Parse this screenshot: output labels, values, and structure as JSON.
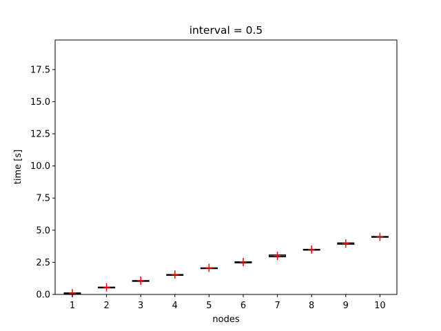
{
  "chart_data": {
    "type": "box",
    "title": "interval = 0.5",
    "xlabel": "nodes",
    "ylabel": "time [s]",
    "categories": [
      "1",
      "2",
      "3",
      "4",
      "5",
      "6",
      "7",
      "8",
      "9",
      "10"
    ],
    "ylim": [
      0,
      19.8
    ],
    "yticks": [
      0.0,
      2.5,
      5.0,
      7.5,
      10.0,
      12.5,
      15.0,
      17.5
    ],
    "ytick_labels": [
      "0.0",
      "2.5",
      "5.0",
      "7.5",
      "10.0",
      "12.5",
      "15.0",
      "17.5"
    ],
    "grid": false,
    "boxes": [
      {
        "category": "1",
        "q1": 0.08,
        "median": 0.1,
        "q3": 0.13
      },
      {
        "category": "2",
        "q1": 0.52,
        "median": 0.55,
        "q3": 0.58
      },
      {
        "category": "3",
        "q1": 1.03,
        "median": 1.06,
        "q3": 1.09
      },
      {
        "category": "4",
        "q1": 1.48,
        "median": 1.52,
        "q3": 1.56
      },
      {
        "category": "5",
        "q1": 2.02,
        "median": 2.05,
        "q3": 2.08
      },
      {
        "category": "6",
        "q1": 2.45,
        "median": 2.5,
        "q3": 2.55
      },
      {
        "category": "7",
        "q1": 2.92,
        "median": 3.0,
        "q3": 3.08
      },
      {
        "category": "8",
        "q1": 3.46,
        "median": 3.49,
        "q3": 3.52
      },
      {
        "category": "9",
        "q1": 3.9,
        "median": 3.97,
        "q3": 4.02
      },
      {
        "category": "10",
        "q1": 4.44,
        "median": 4.48,
        "q3": 4.52
      }
    ],
    "means": [
      0.1,
      0.55,
      1.08,
      1.55,
      2.07,
      2.52,
      3.0,
      3.5,
      3.97,
      4.48
    ],
    "mean_marker_color": "#ff0000",
    "box_color": "#000000"
  }
}
